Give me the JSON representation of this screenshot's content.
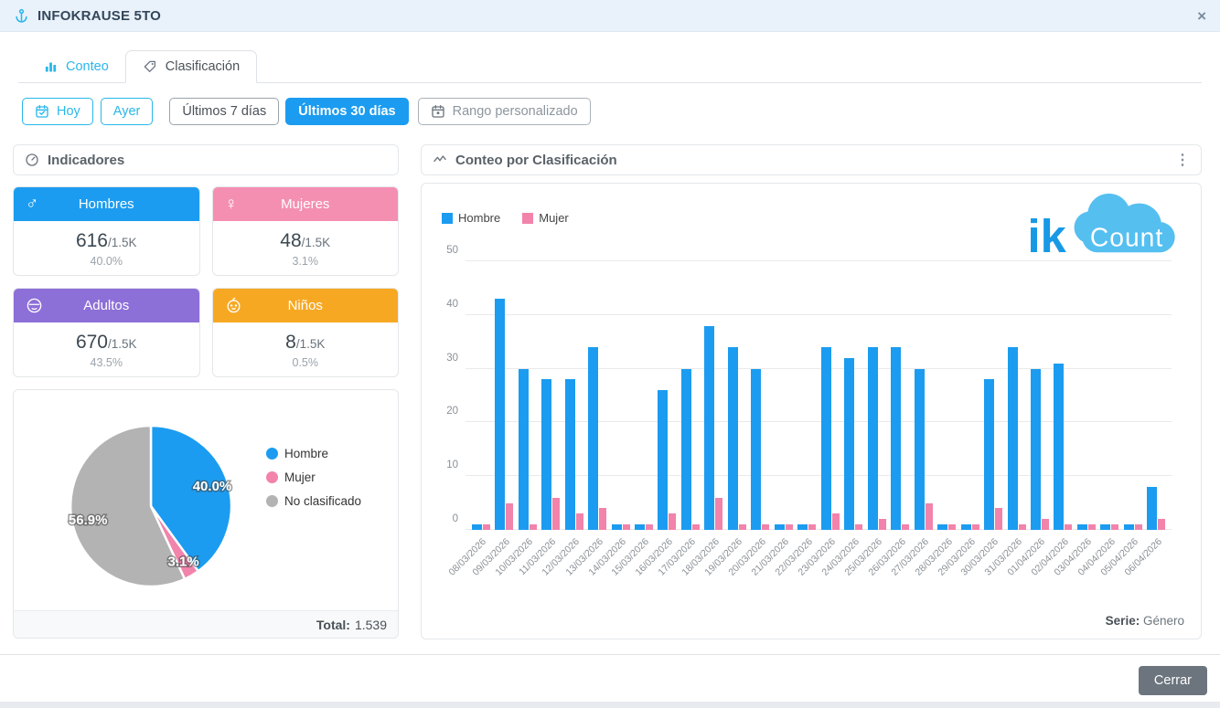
{
  "window": {
    "title": "INFOKRAUSE 5TO",
    "close_icon": "×"
  },
  "tabs": [
    {
      "label": "Conteo",
      "active": false
    },
    {
      "label": "Clasificación",
      "active": true
    }
  ],
  "filters": {
    "hoy": "Hoy",
    "ayer": "Ayer",
    "ultimos7": "Últimos 7 días",
    "ultimos30": "Últimos 30 días",
    "rango": "Rango personalizado"
  },
  "indicators": {
    "title": "Indicadores",
    "cards": [
      {
        "label": "Hombres",
        "value": "616",
        "total": "/1.5K",
        "percent": "40.0%",
        "color": "#1b9cf0",
        "icon": "male-icon"
      },
      {
        "label": "Mujeres",
        "value": "48",
        "total": "/1.5K",
        "percent": "3.1%",
        "color": "#f48fb1",
        "icon": "female-icon"
      },
      {
        "label": "Adultos",
        "value": "670",
        "total": "/1.5K",
        "percent": "43.5%",
        "color": "#8d6fd8",
        "icon": "adult-icon"
      },
      {
        "label": "Niños",
        "value": "8",
        "total": "/1.5K",
        "percent": "0.5%",
        "color": "#f7a823",
        "icon": "child-icon"
      }
    ],
    "total_label": "Total:",
    "total_value": "1.539"
  },
  "chart_panel": {
    "title": "Conteo por Clasificación",
    "menu_icon": "⋮",
    "serie_label": "Serie:",
    "serie_value": "Género"
  },
  "logo": {
    "ik": "ik",
    "count": "Count",
    "cloud_color": "#55bff0",
    "text_color": "#1899e6"
  },
  "footer": {
    "close_button": "Cerrar"
  },
  "chart_data": [
    {
      "type": "bar",
      "title": "Conteo por Clasificación",
      "categories": [
        "08/03/2026",
        "09/03/2026",
        "10/03/2026",
        "11/03/2026",
        "12/03/2026",
        "13/03/2026",
        "14/03/2026",
        "15/03/2026",
        "16/03/2026",
        "17/03/2026",
        "18/03/2026",
        "19/03/2026",
        "20/03/2026",
        "21/03/2026",
        "22/03/2026",
        "23/03/2026",
        "24/03/2026",
        "25/03/2026",
        "26/03/2026",
        "27/03/2026",
        "28/03/2026",
        "29/03/2026",
        "30/03/2026",
        "31/03/2026",
        "01/04/2026",
        "02/04/2026",
        "03/04/2026",
        "04/04/2026",
        "05/04/2026",
        "06/04/2026"
      ],
      "series": [
        {
          "name": "Hombre",
          "color": "#1b9cf0",
          "values": [
            1,
            43,
            30,
            28,
            28,
            34,
            1,
            1,
            26,
            30,
            38,
            34,
            30,
            1,
            1,
            34,
            32,
            34,
            34,
            30,
            1,
            1,
            28,
            34,
            30,
            31,
            1,
            1,
            1,
            8
          ]
        },
        {
          "name": "Mujer",
          "color": "#f283ab",
          "values": [
            1,
            5,
            1,
            6,
            3,
            4,
            1,
            1,
            3,
            1,
            6,
            1,
            1,
            1,
            1,
            3,
            1,
            2,
            1,
            5,
            1,
            1,
            4,
            1,
            2,
            1,
            1,
            1,
            1,
            2
          ]
        }
      ],
      "ylim": [
        0,
        50
      ],
      "yticks": [
        0,
        10,
        20,
        30,
        40,
        50
      ],
      "grid": true,
      "legend_position": "top-left",
      "xlabel": "",
      "ylabel": ""
    },
    {
      "type": "pie",
      "labels": [
        "Hombre",
        "Mujer",
        "No clasificado"
      ],
      "values": [
        40.0,
        3.1,
        56.9
      ],
      "display_labels": [
        "40.0%",
        "3.1%",
        "56.9%"
      ],
      "colors": [
        "#1b9cf0",
        "#f283ab",
        "#b3b3b3"
      ],
      "legend_position": "right",
      "total": "1.539"
    }
  ]
}
